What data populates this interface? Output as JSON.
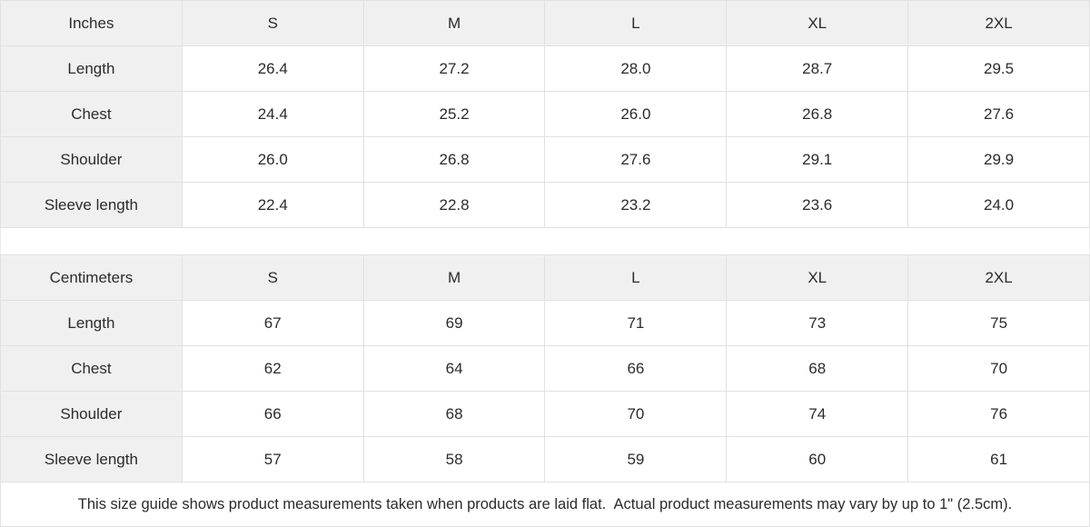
{
  "page": {
    "background": "#ffffff",
    "header_cell_bg": "#f0f0f0",
    "border_color": "#e1e1e1",
    "text_color": "#2b2b2b"
  },
  "size_guide": {
    "tables": [
      {
        "id": "inches",
        "unit_label": "Inches",
        "columns": [
          "S",
          "M",
          "L",
          "XL",
          "2XL"
        ],
        "rows": [
          {
            "label": "Length",
            "values": [
              "26.4",
              "27.2",
              "28.0",
              "28.7",
              "29.5"
            ]
          },
          {
            "label": "Chest",
            "values": [
              "24.4",
              "25.2",
              "26.0",
              "26.8",
              "27.6"
            ]
          },
          {
            "label": "Shoulder",
            "values": [
              "26.0",
              "26.8",
              "27.6",
              "29.1",
              "29.9"
            ]
          },
          {
            "label": "Sleeve length",
            "values": [
              "22.4",
              "22.8",
              "23.2",
              "23.6",
              "24.0"
            ]
          }
        ]
      },
      {
        "id": "centimeters",
        "unit_label": "Centimeters",
        "columns": [
          "S",
          "M",
          "L",
          "XL",
          "2XL"
        ],
        "rows": [
          {
            "label": "Length",
            "values": [
              "67",
              "69",
              "71",
              "73",
              "75"
            ]
          },
          {
            "label": "Chest",
            "values": [
              "62",
              "64",
              "66",
              "68",
              "70"
            ]
          },
          {
            "label": "Shoulder",
            "values": [
              "66",
              "68",
              "70",
              "74",
              "76"
            ]
          },
          {
            "label": "Sleeve length",
            "values": [
              "57",
              "58",
              "59",
              "60",
              "61"
            ]
          }
        ]
      }
    ],
    "footnote": "This size guide shows product measurements taken when products are laid flat.  Actual product measurements may vary by up to 1\" (2.5cm)."
  },
  "chart_data": [
    {
      "type": "table",
      "title": "Inches",
      "columns": [
        "Inches",
        "S",
        "M",
        "L",
        "XL",
        "2XL"
      ],
      "rows": [
        [
          "Length",
          "26.4",
          "27.2",
          "28.0",
          "28.7",
          "29.5"
        ],
        [
          "Chest",
          "24.4",
          "25.2",
          "26.0",
          "26.8",
          "27.6"
        ],
        [
          "Shoulder",
          "26.0",
          "26.8",
          "27.6",
          "29.1",
          "29.9"
        ],
        [
          "Sleeve length",
          "22.4",
          "22.8",
          "23.2",
          "23.6",
          "24.0"
        ]
      ]
    },
    {
      "type": "table",
      "title": "Centimeters",
      "columns": [
        "Centimeters",
        "S",
        "M",
        "L",
        "XL",
        "2XL"
      ],
      "rows": [
        [
          "Length",
          "67",
          "69",
          "71",
          "73",
          "75"
        ],
        [
          "Chest",
          "62",
          "64",
          "66",
          "68",
          "70"
        ],
        [
          "Shoulder",
          "66",
          "68",
          "70",
          "74",
          "76"
        ],
        [
          "Sleeve length",
          "57",
          "58",
          "59",
          "60",
          "61"
        ]
      ]
    }
  ]
}
